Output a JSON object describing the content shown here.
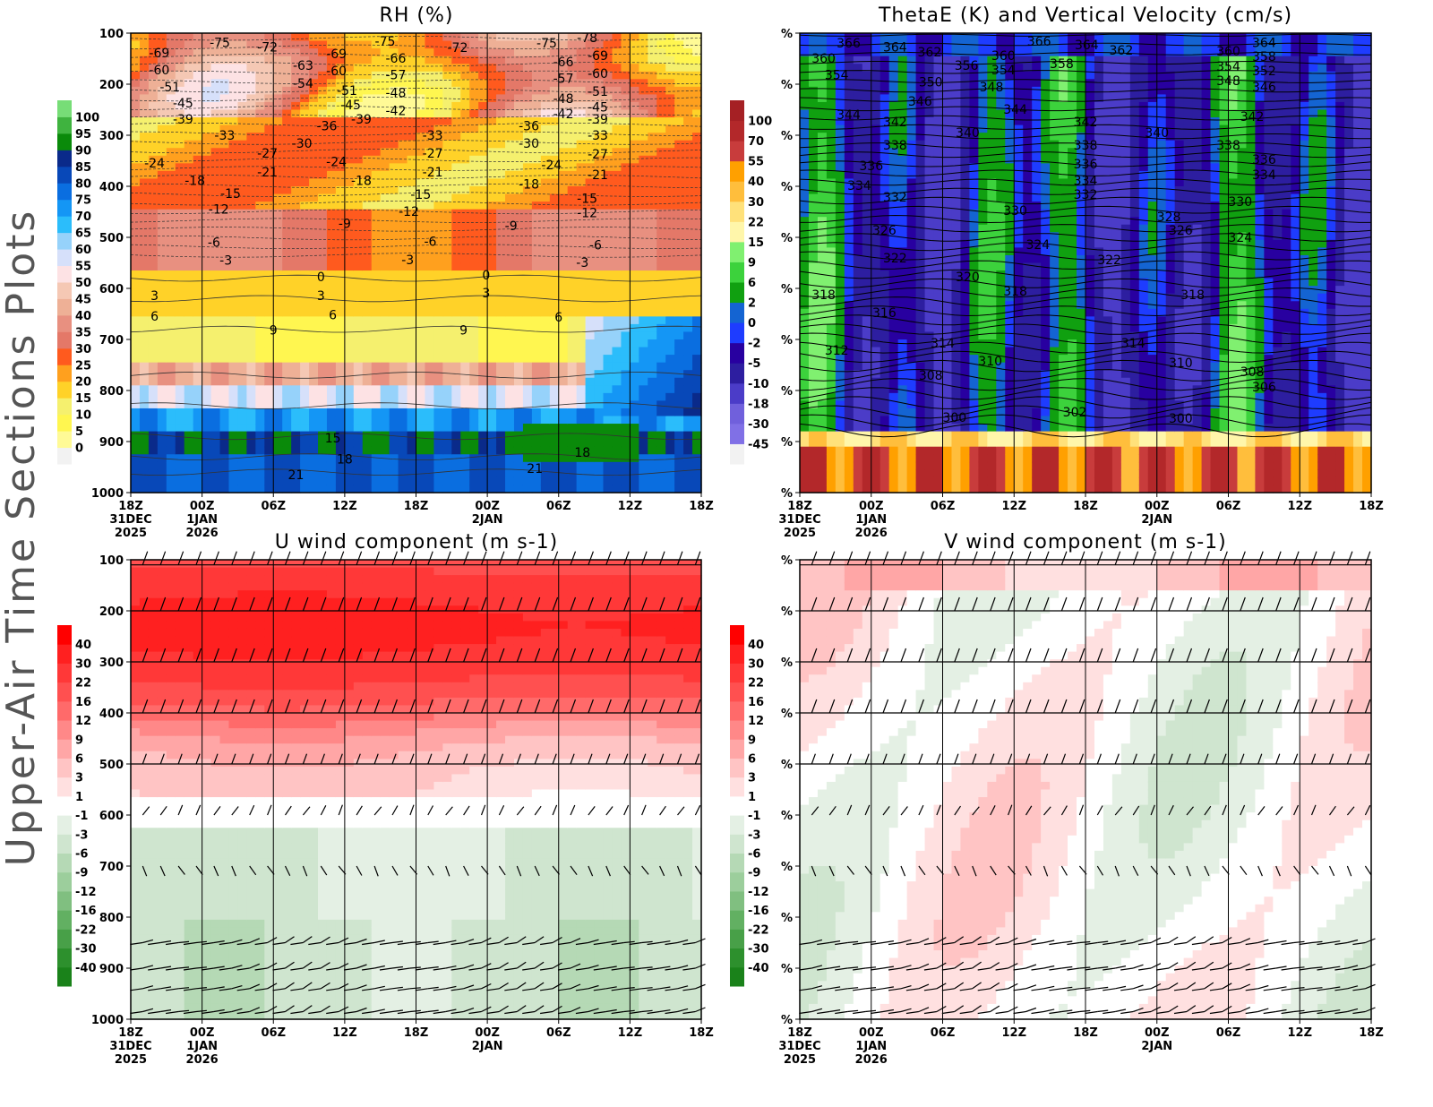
{
  "side_title": "Upper-Air Time Sections Plots",
  "time_axis": {
    "ticks": [
      "18Z",
      "00Z",
      "06Z",
      "12Z",
      "18Z",
      "00Z",
      "06Z",
      "12Z",
      "18Z"
    ],
    "dates": [
      {
        "i": 0,
        "lines": [
          "31DEC",
          "2025"
        ]
      },
      {
        "i": 1,
        "lines": [
          "1JAN",
          "2026"
        ]
      },
      {
        "i": 5,
        "lines": [
          "2JAN"
        ]
      }
    ]
  },
  "chart_data": [
    {
      "type": "heatmap",
      "title": "RH (%)",
      "x_hours": [
        0,
        48
      ],
      "ylim": [
        1000,
        100
      ],
      "y_ticks": [
        100,
        200,
        300,
        400,
        500,
        600,
        700,
        800,
        900,
        1000
      ],
      "y_tick_labels": [
        "100",
        "200",
        "300",
        "400",
        "500",
        "600",
        "700",
        "800",
        "900",
        "1000"
      ],
      "colorbar": {
        "levels": [
          "0",
          "5",
          "10",
          "15",
          "20",
          "25",
          "30",
          "35",
          "40",
          "45",
          "50",
          "55",
          "60",
          "65",
          "70",
          "75",
          "80",
          "85",
          "90",
          "95",
          "100"
        ],
        "colors": [
          "#f2f2f2",
          "#fffa96",
          "#fff650",
          "#f5f06e",
          "#ffd228",
          "#ffa01e",
          "#ff5a1e",
          "#e47868",
          "#e89080",
          "#eeb096",
          "#f5c8b4",
          "#fde2e4",
          "#d6e0fa",
          "#96d2fa",
          "#2bbdfb",
          "#1496f5",
          "#0a6ee0",
          "#0848b8",
          "#0a2a8a",
          "#0a8a0a",
          "#3fb33f",
          "#77dd77"
        ]
      },
      "contour_label_series": "Temperature (C)",
      "contour_labels": [
        [
          2.4,
          139,
          "-69"
        ],
        [
          2.4,
          172,
          "-60"
        ],
        [
          3.3,
          205,
          "-51"
        ],
        [
          4.4,
          237,
          "-45"
        ],
        [
          4.4,
          268,
          "-39"
        ],
        [
          7.5,
          118,
          "-75"
        ],
        [
          11.5,
          127,
          "-72"
        ],
        [
          14.5,
          163,
          "-63"
        ],
        [
          14.5,
          198,
          "-54"
        ],
        [
          17.3,
          140,
          "-69"
        ],
        [
          17.3,
          174,
          "-60"
        ],
        [
          18.2,
          212,
          "-51"
        ],
        [
          18.5,
          240,
          "-45"
        ],
        [
          19.4,
          268,
          "-39"
        ],
        [
          7.9,
          300,
          "-33"
        ],
        [
          16.5,
          282,
          "-36"
        ],
        [
          14.4,
          316,
          "-30"
        ],
        [
          11.5,
          335,
          "-27"
        ],
        [
          11.5,
          372,
          "-21"
        ],
        [
          2,
          354,
          "-24"
        ],
        [
          5.4,
          389,
          "-18"
        ],
        [
          8.4,
          414,
          "-15"
        ],
        [
          7.4,
          445,
          "-12"
        ],
        [
          17.3,
          352,
          "-24"
        ],
        [
          19.4,
          389,
          "-18"
        ],
        [
          18,
          473,
          "-9"
        ],
        [
          7,
          510,
          "-6"
        ],
        [
          8,
          545,
          "-3"
        ],
        [
          21.4,
          116,
          "-75"
        ],
        [
          22.3,
          149,
          "-66"
        ],
        [
          22.3,
          182,
          "-57"
        ],
        [
          22.3,
          217,
          "-48"
        ],
        [
          22.3,
          252,
          "-42"
        ],
        [
          25.4,
          300,
          "-33"
        ],
        [
          25.4,
          335,
          "-27"
        ],
        [
          25.4,
          372,
          "-21"
        ],
        [
          24.4,
          416,
          "-15"
        ],
        [
          23.4,
          449,
          "-12"
        ],
        [
          25.2,
          508,
          "-6"
        ],
        [
          23.3,
          544,
          "-3"
        ],
        [
          27.5,
          128,
          "-72"
        ],
        [
          33.5,
          282,
          "-36"
        ],
        [
          33.5,
          316,
          "-30"
        ],
        [
          35.4,
          358,
          "-24"
        ],
        [
          33.5,
          396,
          "-18"
        ],
        [
          32,
          477,
          "-9"
        ],
        [
          35,
          119,
          "-75"
        ],
        [
          38.4,
          109,
          "-78"
        ],
        [
          36.4,
          156,
          "-66"
        ],
        [
          39.3,
          144,
          "-69"
        ],
        [
          36.4,
          189,
          "-57"
        ],
        [
          39.3,
          179,
          "-60"
        ],
        [
          36.4,
          228,
          "-48"
        ],
        [
          39.3,
          214,
          "-51"
        ],
        [
          36.4,
          258,
          "-42"
        ],
        [
          39.3,
          245,
          "-45"
        ],
        [
          39.3,
          268,
          "-39"
        ],
        [
          39.3,
          300,
          "-33"
        ],
        [
          39.3,
          337,
          "-27"
        ],
        [
          39.3,
          377,
          "-21"
        ],
        [
          38.4,
          424,
          "-15"
        ],
        [
          38.4,
          452,
          "-12"
        ],
        [
          39.1,
          515,
          "-6"
        ],
        [
          38,
          549,
          "-3"
        ],
        [
          16,
          577,
          "0"
        ],
        [
          16,
          614,
          "3"
        ],
        [
          17,
          652,
          "6"
        ],
        [
          12,
          682,
          "9"
        ],
        [
          28,
          682,
          "9"
        ],
        [
          29.9,
          574,
          "0"
        ],
        [
          29.9,
          609,
          "3"
        ],
        [
          36,
          656,
          "6"
        ],
        [
          2,
          614,
          "3"
        ],
        [
          2,
          654,
          "6"
        ],
        [
          17,
          893,
          "15"
        ],
        [
          18,
          934,
          "18"
        ],
        [
          13.9,
          965,
          "21"
        ],
        [
          34,
          953,
          "21"
        ],
        [
          38,
          921,
          "18"
        ]
      ]
    },
    {
      "type": "heatmap",
      "title": "ThetaE (K) and Vertical Velocity (cm/s)",
      "x_hours": [
        0,
        48
      ],
      "ylim": [
        1000,
        100
      ],
      "y_ticks": [
        100,
        200,
        300,
        400,
        500,
        600,
        700,
        800,
        900,
        1000
      ],
      "y_tick_labels": [
        "%",
        "%",
        "%",
        "%",
        "%",
        "%",
        "%",
        "%",
        "%",
        "%"
      ],
      "colorbar": {
        "levels": [
          "-45",
          "-30",
          "-18",
          "-10",
          "-5",
          "-2",
          "0",
          "2",
          "6",
          "9",
          "15",
          "22",
          "30",
          "40",
          "55",
          "70",
          "100"
        ],
        "colors": [
          "#f2f2f2",
          "#8070e6",
          "#7060dc",
          "#4b3cc8",
          "#2d1ea0",
          "#2800a0",
          "#1e3cff",
          "#1464d2",
          "#10a010",
          "#3cd23c",
          "#80f070",
          "#fff6aa",
          "#ffe17a",
          "#ffbe3c",
          "#ffa000",
          "#c83c3c",
          "#b3282a",
          "#a52024"
        ]
      },
      "contour_label_series": "ThetaE (K)",
      "contour_labels": [
        [
          4.1,
          119,
          "366"
        ],
        [
          8,
          127,
          "364"
        ],
        [
          10.9,
          137,
          "362"
        ],
        [
          2,
          149,
          "360"
        ],
        [
          3.1,
          182,
          "354"
        ],
        [
          14,
          163,
          "356"
        ],
        [
          17.1,
          144,
          "360"
        ],
        [
          17.1,
          172,
          "354"
        ],
        [
          11,
          196,
          "350"
        ],
        [
          16.1,
          205,
          "348"
        ],
        [
          20.1,
          116,
          "366"
        ],
        [
          24.1,
          123,
          "364"
        ],
        [
          27,
          133,
          "362"
        ],
        [
          22,
          160,
          "358"
        ],
        [
          10.1,
          233,
          "346"
        ],
        [
          4.1,
          260,
          "344"
        ],
        [
          18.1,
          249,
          "344"
        ],
        [
          8,
          274,
          "342"
        ],
        [
          24,
          274,
          "342"
        ],
        [
          14.1,
          295,
          "340"
        ],
        [
          30,
          295,
          "340"
        ],
        [
          8,
          319,
          "338"
        ],
        [
          24,
          319,
          "338"
        ],
        [
          36,
          319,
          "338"
        ],
        [
          6,
          360,
          "336"
        ],
        [
          24,
          356,
          "336"
        ],
        [
          39,
          347,
          "336"
        ],
        [
          5,
          398,
          "334"
        ],
        [
          24,
          389,
          "334"
        ],
        [
          39,
          377,
          "334"
        ],
        [
          8,
          421,
          "332"
        ],
        [
          24,
          416,
          "332"
        ],
        [
          18.1,
          447,
          "330"
        ],
        [
          37,
          430,
          "330"
        ],
        [
          31,
          460,
          "328"
        ],
        [
          7.1,
          486,
          "326"
        ],
        [
          32,
          486,
          "326"
        ],
        [
          20,
          514,
          "324"
        ],
        [
          37,
          500,
          "324"
        ],
        [
          8,
          540,
          "322"
        ],
        [
          26,
          544,
          "322"
        ],
        [
          14.1,
          577,
          "320"
        ],
        [
          2,
          612,
          "318"
        ],
        [
          18.1,
          605,
          "318"
        ],
        [
          33,
          612,
          "318"
        ],
        [
          7.1,
          647,
          "316"
        ],
        [
          12,
          707,
          "314"
        ],
        [
          28,
          707,
          "314"
        ],
        [
          3.1,
          721,
          "312"
        ],
        [
          16,
          742,
          "310"
        ],
        [
          32,
          746,
          "310"
        ],
        [
          11,
          770,
          "308"
        ],
        [
          38,
          763,
          "308"
        ],
        [
          39,
          793,
          "306"
        ],
        [
          23.1,
          842,
          "302"
        ],
        [
          13,
          853,
          "300"
        ],
        [
          32,
          854,
          "300"
        ],
        [
          36,
          135,
          "360"
        ],
        [
          39,
          146,
          "358"
        ],
        [
          39,
          118,
          "364"
        ],
        [
          36,
          165,
          "354"
        ],
        [
          39,
          174,
          "352"
        ],
        [
          36,
          193,
          "348"
        ],
        [
          39,
          205,
          "346"
        ],
        [
          38,
          263,
          "342"
        ]
      ]
    },
    {
      "type": "heatmap",
      "title": "U wind component (m s-1)",
      "x_hours": [
        0,
        48
      ],
      "ylim": [
        1000,
        100
      ],
      "y_ticks": [
        100,
        200,
        300,
        400,
        500,
        600,
        700,
        800,
        900,
        1000
      ],
      "y_tick_labels": [
        "100",
        "200",
        "300",
        "400",
        "500",
        "600",
        "700",
        "800",
        "900",
        "1000"
      ],
      "colorbar": {
        "levels": [
          "-40",
          "-30",
          "-22",
          "-16",
          "-12",
          "-9",
          "-6",
          "-3",
          "-1",
          "1",
          "3",
          "6",
          "9",
          "12",
          "16",
          "22",
          "30",
          "40"
        ],
        "colors": [
          "#1a821a",
          "#2d902d",
          "#48a048",
          "#62b062",
          "#80bf80",
          "#9cce9c",
          "#b5d9b5",
          "#cfe5cf",
          "#e4f0e4",
          "#ffffff",
          "#ffe0e0",
          "#ffc4c4",
          "#ffa6a6",
          "#ff8888",
          "#ff6a6a",
          "#ff5050",
          "#ff3838",
          "#ff2020",
          "#ff0000"
        ]
      },
      "barb_levels": [
        110,
        200,
        300,
        400,
        500,
        600,
        700,
        850,
        900,
        940,
        985
      ],
      "contour_labels": []
    },
    {
      "type": "heatmap",
      "title": "V wind component (m s-1)",
      "x_hours": [
        0,
        48
      ],
      "ylim": [
        1000,
        100
      ],
      "y_ticks": [
        100,
        200,
        300,
        400,
        500,
        600,
        700,
        800,
        900,
        1000
      ],
      "y_tick_labels": [
        "%",
        "%",
        "%",
        "%",
        "%",
        "%",
        "%",
        "%",
        "%",
        "%"
      ],
      "colorbar": {
        "levels": [
          "-40",
          "-30",
          "-22",
          "-16",
          "-12",
          "-9",
          "-6",
          "-3",
          "-1",
          "1",
          "3",
          "6",
          "9",
          "12",
          "16",
          "22",
          "30",
          "40"
        ],
        "colors": [
          "#1a821a",
          "#2d902d",
          "#48a048",
          "#62b062",
          "#80bf80",
          "#9cce9c",
          "#b5d9b5",
          "#cfe5cf",
          "#e4f0e4",
          "#ffffff",
          "#ffe0e0",
          "#ffc4c4",
          "#ffa6a6",
          "#ff8888",
          "#ff6a6a",
          "#ff5050",
          "#ff3838",
          "#ff2020",
          "#ff0000"
        ]
      },
      "barb_levels": [
        110,
        200,
        300,
        400,
        500,
        600,
        700,
        850,
        900,
        940,
        985
      ],
      "contour_labels": []
    }
  ]
}
